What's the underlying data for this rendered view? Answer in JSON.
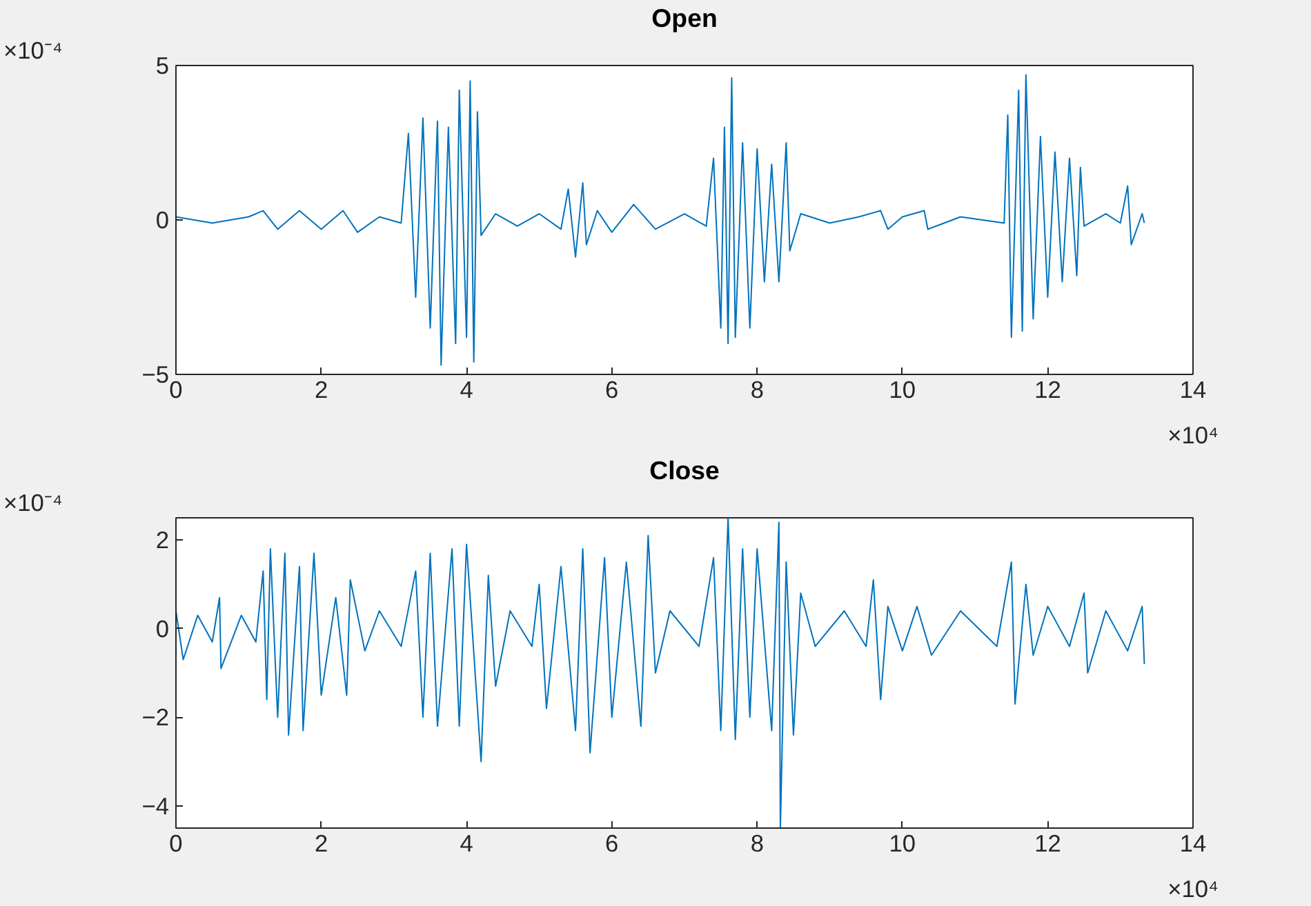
{
  "chart_data": [
    {
      "type": "line",
      "title": "Open",
      "annotations": [
        "×10⁻⁴",
        "×10⁴"
      ],
      "xlim": [
        0,
        14
      ],
      "ylim": [
        -5,
        5
      ],
      "xticks": [
        0,
        2,
        4,
        6,
        8,
        10,
        12,
        14
      ],
      "yticks": [
        -5,
        0,
        5
      ],
      "grid": false,
      "marker": "none",
      "line_style": "solid",
      "series": [
        {
          "color": "#0072bd",
          "x": [
            0,
            0.5,
            1.0,
            1.2,
            1.4,
            1.7,
            2.0,
            2.3,
            2.5,
            2.8,
            3.1,
            3.2,
            3.3,
            3.4,
            3.5,
            3.6,
            3.65,
            3.75,
            3.85,
            3.9,
            4.0,
            4.05,
            4.1,
            4.15,
            4.2,
            4.4,
            4.7,
            5.0,
            5.3,
            5.4,
            5.5,
            5.6,
            5.65,
            5.8,
            6.0,
            6.3,
            6.6,
            7.0,
            7.3,
            7.4,
            7.5,
            7.55,
            7.6,
            7.65,
            7.7,
            7.8,
            7.9,
            8.0,
            8.1,
            8.2,
            8.3,
            8.4,
            8.45,
            8.6,
            9.0,
            9.4,
            9.7,
            9.8,
            10.0,
            10.3,
            10.35,
            10.8,
            11.4,
            11.45,
            11.5,
            11.6,
            11.65,
            11.7,
            11.8,
            11.9,
            12.0,
            12.1,
            12.2,
            12.3,
            12.4,
            12.45,
            12.5,
            12.8,
            13.0,
            13.1,
            13.15,
            13.3,
            13.33
          ],
          "values": [
            0.1,
            -0.1,
            0.1,
            0.3,
            -0.3,
            0.3,
            -0.3,
            0.3,
            -0.4,
            0.1,
            -0.1,
            2.8,
            -2.5,
            3.3,
            -3.5,
            3.2,
            -4.7,
            3.0,
            -4.0,
            4.2,
            -3.8,
            4.5,
            -4.6,
            3.5,
            -0.5,
            0.2,
            -0.2,
            0.2,
            -0.3,
            1.0,
            -1.2,
            1.2,
            -0.8,
            0.3,
            -0.4,
            0.5,
            -0.3,
            0.2,
            -0.2,
            2.0,
            -3.5,
            3.0,
            -4.0,
            4.6,
            -3.8,
            2.5,
            -3.5,
            2.3,
            -2.0,
            1.8,
            -2.0,
            2.5,
            -1.0,
            0.2,
            -0.1,
            0.1,
            0.3,
            -0.3,
            0.1,
            0.3,
            -0.3,
            0.1,
            -0.1,
            3.4,
            -3.8,
            4.2,
            -3.6,
            4.7,
            -3.2,
            2.7,
            -2.5,
            2.2,
            -2.0,
            2.0,
            -1.8,
            1.7,
            -0.2,
            0.2,
            -0.1,
            1.1,
            -0.8,
            0.2,
            -0.1
          ]
        }
      ]
    },
    {
      "type": "line",
      "title": "Close",
      "annotations": [
        "×10⁻⁴",
        "×10⁴"
      ],
      "xlim": [
        0,
        14
      ],
      "ylim": [
        -4.5,
        2.5
      ],
      "xticks": [
        0,
        2,
        4,
        6,
        8,
        10,
        12,
        14
      ],
      "yticks": [
        -4,
        -2,
        0,
        2
      ],
      "grid": false,
      "marker": "none",
      "line_style": "solid",
      "series": [
        {
          "color": "#0072bd",
          "x": [
            0,
            0.1,
            0.3,
            0.5,
            0.6,
            0.62,
            0.9,
            1.1,
            1.2,
            1.25,
            1.3,
            1.4,
            1.5,
            1.55,
            1.7,
            1.75,
            1.9,
            2.0,
            2.2,
            2.35,
            2.4,
            2.6,
            2.8,
            3.1,
            3.3,
            3.4,
            3.5,
            3.6,
            3.8,
            3.9,
            4.0,
            4.2,
            4.3,
            4.4,
            4.6,
            4.9,
            5.0,
            5.1,
            5.3,
            5.5,
            5.6,
            5.7,
            5.9,
            6.0,
            6.2,
            6.4,
            6.5,
            6.6,
            6.8,
            7.2,
            7.4,
            7.5,
            7.6,
            7.7,
            7.8,
            7.9,
            8.0,
            8.2,
            8.3,
            8.32,
            8.4,
            8.5,
            8.6,
            8.8,
            9.2,
            9.5,
            9.6,
            9.7,
            9.8,
            10.0,
            10.2,
            10.4,
            10.8,
            11.3,
            11.5,
            11.55,
            11.7,
            11.8,
            12.0,
            12.3,
            12.5,
            12.55,
            12.8,
            13.1,
            13.3,
            13.33
          ],
          "values": [
            0.4,
            -0.7,
            0.3,
            -0.3,
            0.7,
            -0.9,
            0.3,
            -0.3,
            1.3,
            -1.6,
            1.8,
            -2.0,
            1.7,
            -2.4,
            1.4,
            -2.3,
            1.7,
            -1.5,
            0.7,
            -1.5,
            1.1,
            -0.5,
            0.4,
            -0.4,
            1.3,
            -2.0,
            1.7,
            -2.2,
            1.8,
            -2.2,
            1.9,
            -3.0,
            1.2,
            -1.3,
            0.4,
            -0.4,
            1.0,
            -1.8,
            1.4,
            -2.3,
            1.8,
            -2.8,
            1.6,
            -2.0,
            1.5,
            -2.2,
            2.1,
            -1.0,
            0.4,
            -0.4,
            1.6,
            -2.3,
            2.5,
            -2.5,
            1.8,
            -2.0,
            1.8,
            -2.3,
            2.4,
            -4.5,
            1.5,
            -2.4,
            0.8,
            -0.4,
            0.4,
            -0.4,
            1.1,
            -1.6,
            0.5,
            -0.5,
            0.5,
            -0.6,
            0.4,
            -0.4,
            1.5,
            -1.7,
            1.0,
            -0.6,
            0.5,
            -0.4,
            0.8,
            -1.0,
            0.4,
            -0.5,
            0.5,
            -0.8
          ]
        }
      ]
    }
  ]
}
